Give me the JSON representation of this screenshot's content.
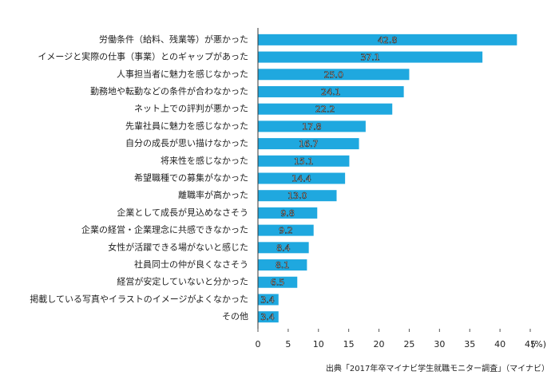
{
  "chart_data": {
    "type": "barh",
    "categories": [
      "労働条件（給料、残業等）が悪かった",
      "イメージと実際の仕事（事業）とのギャップがあった",
      "人事担当者に魅力を感じなかった",
      "勤務地や転勤などの条件が合わなかった",
      "ネット上での評判が悪かった",
      "先輩社員に魅力を感じなかった",
      "自分の成長が思い描けなかった",
      "将来性を感じなかった",
      "希望職種での募集がなかった",
      "離職率が高かった",
      "企業として成長が見込めなさそう",
      "企業の経営・企業理念に共感できなかった",
      "女性が活躍できる場がないと感じた",
      "社員同士の仲が良くなさそう",
      "経営が安定していないと分かった",
      "掲載している写真やイラストのイメージがよくなかった",
      "その他"
    ],
    "values": [
      42.8,
      37.1,
      25.0,
      24.1,
      22.2,
      17.8,
      16.7,
      15.1,
      14.4,
      13.0,
      9.8,
      9.2,
      8.4,
      8.1,
      6.5,
      3.4,
      3.4
    ],
    "value_labels": [
      "42.8",
      "37.1",
      "25.0",
      "24.1",
      "22.2",
      "17.8",
      "16.7",
      "15.1",
      "14.4",
      "13.0",
      "9.8",
      "9.2",
      "8.4",
      "8.1",
      "6.5",
      "3.4",
      "3.4"
    ],
    "color": "#1fa8df",
    "xlim": [
      0,
      45
    ],
    "xticks": [
      0,
      5,
      10,
      15,
      20,
      25,
      30,
      35,
      40,
      45
    ],
    "xlabel": "(%)",
    "source": "出典「2017年卒マイナビ学生就職モニター調査」（マイナビ）"
  }
}
